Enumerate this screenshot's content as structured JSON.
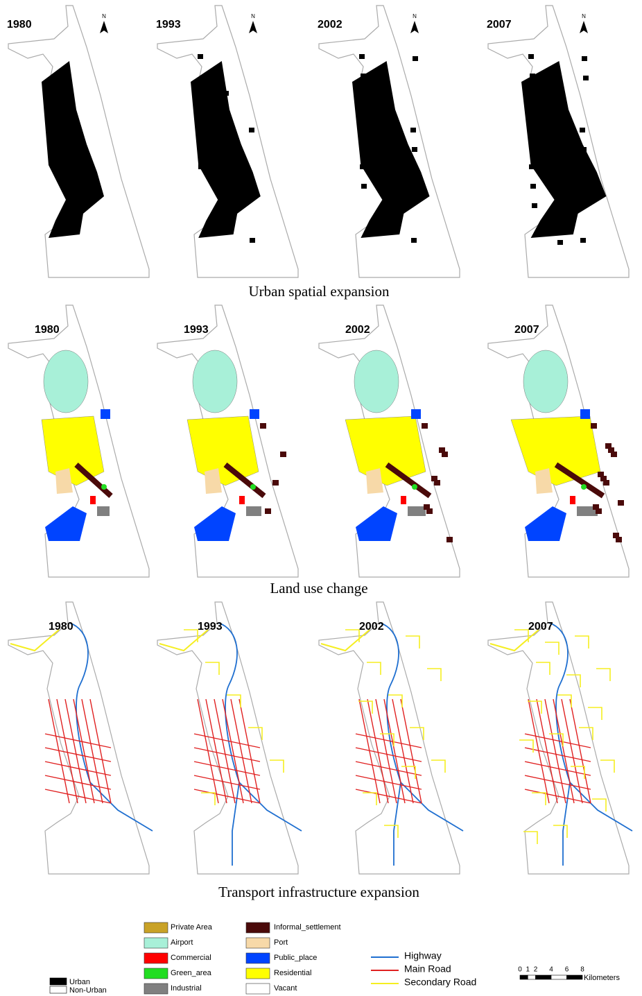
{
  "rows": [
    {
      "title": "Urban spatial expansion",
      "years": [
        "1980",
        "1993",
        "2002",
        "2007"
      ]
    },
    {
      "title": "Land use change",
      "years": [
        "1980",
        "1993",
        "2002",
        "2007"
      ]
    },
    {
      "title": "Transport infrastructure expansion",
      "years": [
        "1980",
        "1993",
        "2002",
        "2007"
      ]
    }
  ],
  "north_label": "N",
  "legend": {
    "urban": [
      {
        "label": "Urban",
        "color": "#000000"
      },
      {
        "label": "Non-Urban",
        "color": "#ffffff"
      }
    ],
    "land_use": [
      {
        "label": "Private Area",
        "color": "#c9a227"
      },
      {
        "label": "Airport",
        "color": "#a8f0d8"
      },
      {
        "label": "Commercial",
        "color": "#ff0000"
      },
      {
        "label": "Green_area",
        "color": "#22dd22"
      },
      {
        "label": "Industrial",
        "color": "#808080"
      },
      {
        "label": "Informal_settlement",
        "color": "#4a0a0a"
      },
      {
        "label": "Port",
        "color": "#f7d9a8"
      },
      {
        "label": "Public_place",
        "color": "#0044ff"
      },
      {
        "label": "Residential",
        "color": "#ffff00"
      },
      {
        "label": "Vacant",
        "color": "#ffffff"
      }
    ],
    "roads": [
      {
        "label": "Highway",
        "color": "#1f6fd0"
      },
      {
        "label": "Main Road",
        "color": "#e02020"
      },
      {
        "label": "Secondary Road",
        "color": "#f5ee20"
      }
    ]
  },
  "scale": {
    "ticks": [
      0,
      1,
      2,
      4,
      6,
      8
    ],
    "unit": "Kilometers"
  }
}
